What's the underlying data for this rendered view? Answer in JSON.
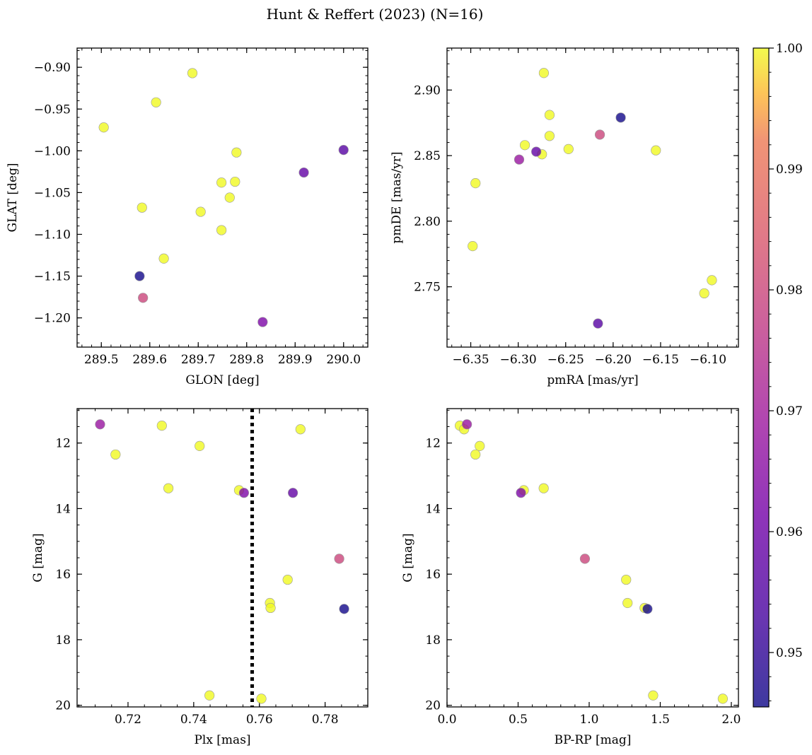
{
  "title": "Hunt & Reffert (2023) (N=16)",
  "colors": {
    "viridis_note": "plasma colormap",
    "marker_edge": "#9a9a9a",
    "ref_line": "#000000"
  },
  "colorbar": {
    "vmin": 0.9455,
    "vmax": 1.0,
    "ticks": [
      0.95,
      0.96,
      0.97,
      0.98,
      0.99,
      1.0
    ],
    "tick_labels": [
      "0.95",
      "0.96",
      "0.97",
      "0.98",
      "0.99",
      "1.00"
    ]
  },
  "chart_data": [
    {
      "id": "glon-glat",
      "type": "scatter",
      "xlabel": "GLON [deg]",
      "ylabel": "GLAT [deg]",
      "xlim": [
        289.45,
        290.05
      ],
      "ylim": [
        -1.235,
        -0.877
      ],
      "xticks": [
        289.5,
        289.6,
        289.7,
        289.8,
        289.9,
        290.0
      ],
      "xtick_labels": [
        "289.5",
        "289.6",
        "289.7",
        "289.8",
        "289.9",
        "290.0"
      ],
      "yticks": [
        -0.9,
        -0.95,
        -1.0,
        -1.05,
        -1.1,
        -1.15,
        -1.2
      ],
      "ytick_labels": [
        "−0.90",
        "−0.95",
        "−1.00",
        "−1.05",
        "−1.10",
        "−1.15",
        "−1.20"
      ],
      "invert_y": false,
      "points": [
        {
          "x": 289.505,
          "y": -0.972,
          "c": 1.0
        },
        {
          "x": 289.613,
          "y": -0.942,
          "c": 1.0
        },
        {
          "x": 289.688,
          "y": -0.907,
          "c": 1.0
        },
        {
          "x": 289.779,
          "y": -1.002,
          "c": 1.0
        },
        {
          "x": 289.748,
          "y": -1.038,
          "c": 1.0
        },
        {
          "x": 289.776,
          "y": -1.037,
          "c": 1.0
        },
        {
          "x": 289.765,
          "y": -1.056,
          "c": 1.0
        },
        {
          "x": 289.584,
          "y": -1.068,
          "c": 1.0
        },
        {
          "x": 289.705,
          "y": -1.073,
          "c": 1.0
        },
        {
          "x": 289.748,
          "y": -1.095,
          "c": 1.0
        },
        {
          "x": 289.629,
          "y": -1.129,
          "c": 1.0
        },
        {
          "x": 289.579,
          "y": -1.15,
          "c": 0.946
        },
        {
          "x": 289.586,
          "y": -1.176,
          "c": 0.98
        },
        {
          "x": 289.833,
          "y": -1.205,
          "c": 0.963
        },
        {
          "x": 289.918,
          "y": -1.026,
          "c": 0.958
        },
        {
          "x": 290.0,
          "y": -0.999,
          "c": 0.956
        }
      ]
    },
    {
      "id": "pmra-pmde",
      "type": "scatter",
      "xlabel": "pmRA [mas/yr]",
      "ylabel": "pmDE [mas/yr]",
      "xlim": [
        -6.375,
        -6.068
      ],
      "ylim": [
        2.704,
        2.932
      ],
      "xticks": [
        -6.35,
        -6.3,
        -6.25,
        -6.2,
        -6.15,
        -6.1
      ],
      "xtick_labels": [
        "−6.35",
        "−6.30",
        "−6.25",
        "−6.20",
        "−6.15",
        "−6.10"
      ],
      "yticks": [
        2.75,
        2.8,
        2.85,
        2.9
      ],
      "ytick_labels": [
        "2.75",
        "2.80",
        "2.85",
        "2.90"
      ],
      "invert_y": false,
      "points": [
        {
          "x": -6.273,
          "y": 2.913,
          "c": 1.0
        },
        {
          "x": -6.267,
          "y": 2.881,
          "c": 1.0
        },
        {
          "x": -6.267,
          "y": 2.865,
          "c": 1.0
        },
        {
          "x": -6.293,
          "y": 2.858,
          "c": 1.0
        },
        {
          "x": -6.275,
          "y": 2.851,
          "c": 1.0
        },
        {
          "x": -6.247,
          "y": 2.855,
          "c": 1.0
        },
        {
          "x": -6.155,
          "y": 2.854,
          "c": 1.0
        },
        {
          "x": -6.345,
          "y": 2.829,
          "c": 1.0
        },
        {
          "x": -6.348,
          "y": 2.781,
          "c": 1.0
        },
        {
          "x": -6.096,
          "y": 2.755,
          "c": 1.0
        },
        {
          "x": -6.104,
          "y": 2.745,
          "c": 1.0
        },
        {
          "x": -6.192,
          "y": 2.879,
          "c": 0.946
        },
        {
          "x": -6.214,
          "y": 2.866,
          "c": 0.98
        },
        {
          "x": -6.281,
          "y": 2.853,
          "c": 0.958
        },
        {
          "x": -6.299,
          "y": 2.847,
          "c": 0.968
        },
        {
          "x": -6.216,
          "y": 2.722,
          "c": 0.956
        }
      ]
    },
    {
      "id": "plx-g",
      "type": "scatter",
      "xlabel": "Plx [mas]",
      "ylabel": "G [mag]",
      "xlim": [
        0.7045,
        0.793
      ],
      "ylim": [
        20.05,
        10.95
      ],
      "xticks": [
        0.72,
        0.74,
        0.76,
        0.78
      ],
      "xtick_labels": [
        "0.72",
        "0.74",
        "0.76",
        "0.78"
      ],
      "yticks": [
        12,
        14,
        16,
        18,
        20
      ],
      "ytick_labels": [
        "12",
        "14",
        "16",
        "18",
        "20"
      ],
      "invert_y": true,
      "vline": 0.7578,
      "points": [
        {
          "x": 0.7115,
          "y": 11.43,
          "c": 0.968
        },
        {
          "x": 0.7303,
          "y": 11.47,
          "c": 1.0
        },
        {
          "x": 0.7725,
          "y": 11.58,
          "c": 1.0
        },
        {
          "x": 0.7418,
          "y": 12.09,
          "c": 1.0
        },
        {
          "x": 0.7162,
          "y": 12.35,
          "c": 1.0
        },
        {
          "x": 0.7323,
          "y": 13.38,
          "c": 1.0
        },
        {
          "x": 0.7538,
          "y": 13.44,
          "c": 1.0
        },
        {
          "x": 0.7553,
          "y": 13.52,
          "c": 0.963
        },
        {
          "x": 0.7702,
          "y": 13.52,
          "c": 0.958
        },
        {
          "x": 0.7843,
          "y": 15.53,
          "c": 0.98
        },
        {
          "x": 0.7686,
          "y": 16.17,
          "c": 1.0
        },
        {
          "x": 0.7632,
          "y": 16.88,
          "c": 1.0
        },
        {
          "x": 0.7634,
          "y": 17.03,
          "c": 1.0
        },
        {
          "x": 0.7858,
          "y": 17.06,
          "c": 0.946
        },
        {
          "x": 0.7448,
          "y": 19.7,
          "c": 1.0
        },
        {
          "x": 0.7606,
          "y": 19.8,
          "c": 1.0
        }
      ]
    },
    {
      "id": "bprp-g",
      "type": "scatter",
      "xlabel": "BP-RP [mag]",
      "ylabel": "G [mag]",
      "xlim": [
        0.0,
        2.05
      ],
      "ylim": [
        20.05,
        10.95
      ],
      "xticks": [
        0.0,
        0.5,
        1.0,
        1.5,
        2.0
      ],
      "xtick_labels": [
        "0.0",
        "0.5",
        "1.0",
        "1.5",
        "2.0"
      ],
      "yticks": [
        12,
        14,
        16,
        18,
        20
      ],
      "ytick_labels": [
        "12",
        "14",
        "16",
        "18",
        "20"
      ],
      "invert_y": true,
      "points": [
        {
          "x": 0.09,
          "y": 11.47,
          "c": 1.0
        },
        {
          "x": 0.12,
          "y": 11.58,
          "c": 1.0
        },
        {
          "x": 0.14,
          "y": 11.43,
          "c": 0.968
        },
        {
          "x": 0.23,
          "y": 12.09,
          "c": 1.0
        },
        {
          "x": 0.2,
          "y": 12.35,
          "c": 1.0
        },
        {
          "x": 0.52,
          "y": 13.52,
          "c": 0.963
        },
        {
          "x": 0.54,
          "y": 13.44,
          "c": 1.0
        },
        {
          "x": 0.68,
          "y": 13.38,
          "c": 1.0
        },
        {
          "x": 0.97,
          "y": 15.53,
          "c": 0.98
        },
        {
          "x": 1.26,
          "y": 16.17,
          "c": 1.0
        },
        {
          "x": 1.27,
          "y": 16.88,
          "c": 1.0
        },
        {
          "x": 1.41,
          "y": 17.06,
          "c": 0.946
        },
        {
          "x": 1.39,
          "y": 17.03,
          "c": 1.0
        },
        {
          "x": 1.45,
          "y": 19.7,
          "c": 1.0
        },
        {
          "x": 1.94,
          "y": 19.8,
          "c": 1.0
        }
      ]
    }
  ]
}
